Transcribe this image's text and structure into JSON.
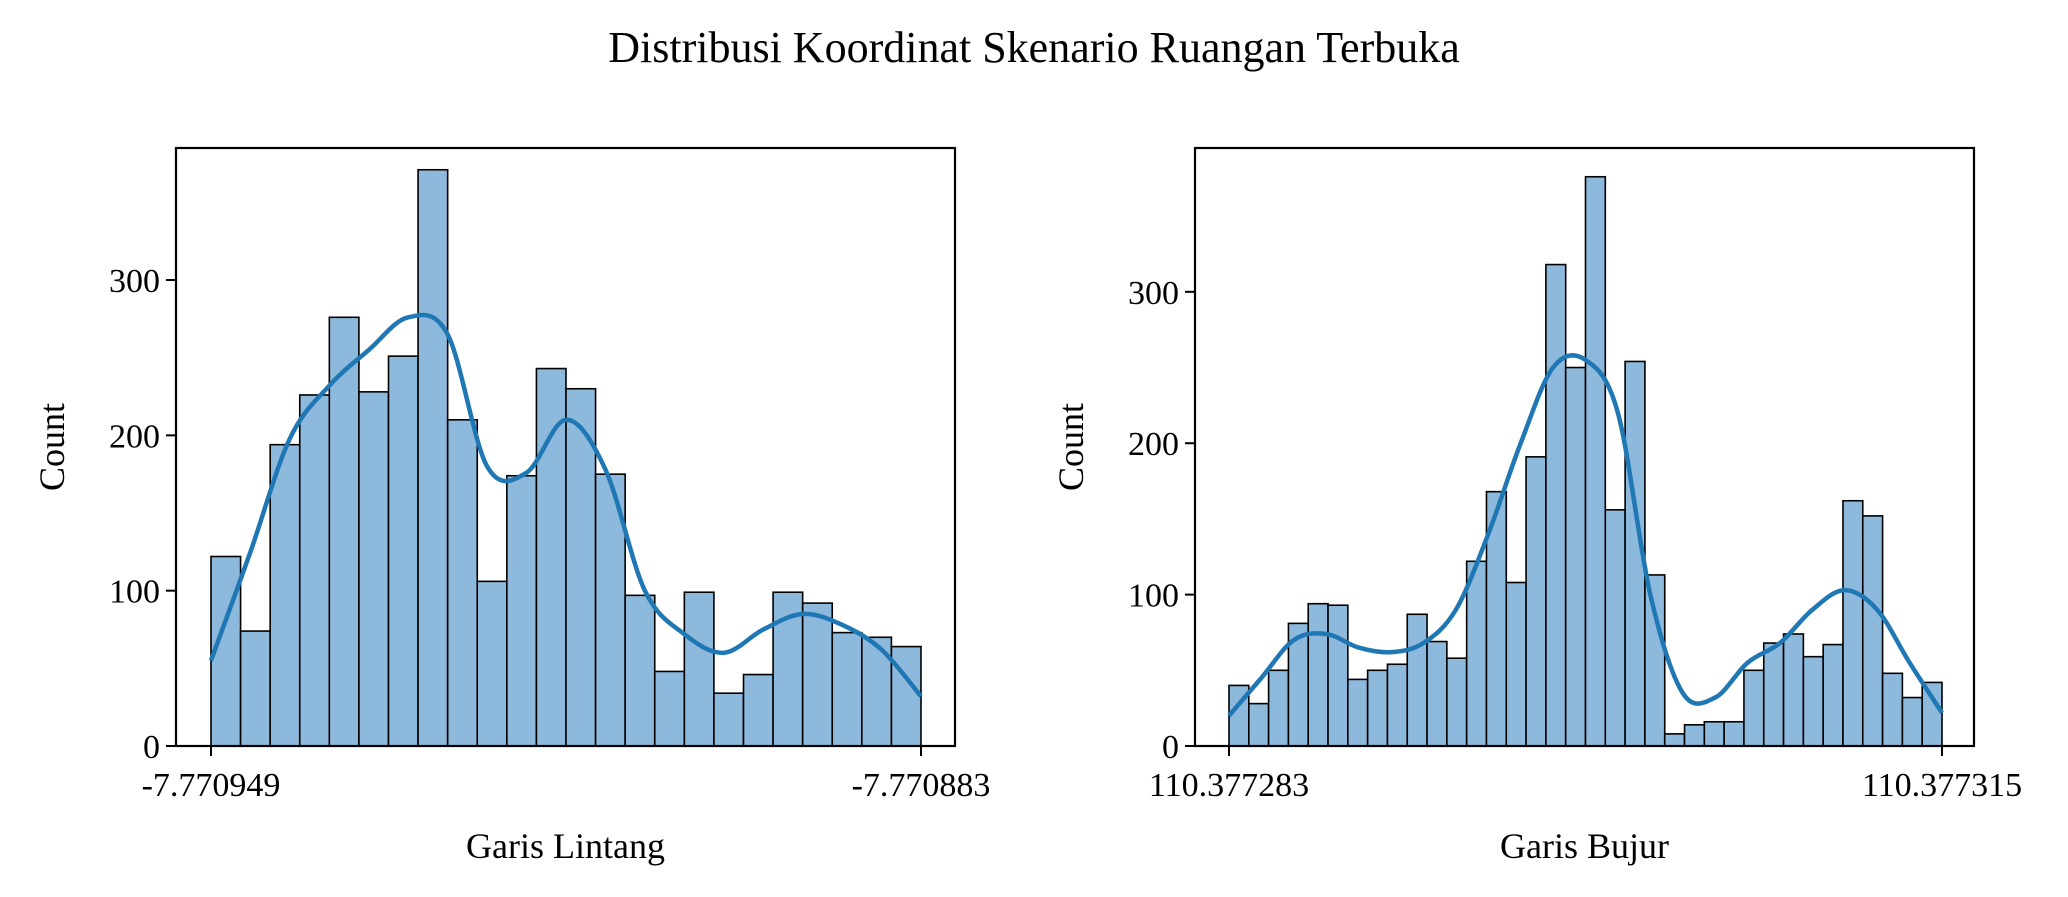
{
  "figure": {
    "title": "Distribusi Koordinat Skenario Ruangan Terbuka"
  },
  "chart_data": [
    {
      "type": "bar",
      "subtype": "histogram_with_kde",
      "title": "",
      "xlabel": "Garis Lintang",
      "ylabel": "Count",
      "xticks": [
        "-7.770949",
        "-7.770883"
      ],
      "yticks": [
        "0",
        "100",
        "200",
        "300"
      ],
      "ylim": [
        0,
        385
      ],
      "grid": false,
      "legend": "none",
      "bar_color": "#8db9dc",
      "line_color": "#1f77b4",
      "values": [
        122,
        74,
        194,
        226,
        276,
        228,
        251,
        371,
        210,
        106,
        174,
        243,
        230,
        175,
        97,
        48,
        99,
        34,
        46,
        99,
        92,
        73,
        70,
        64
      ],
      "kde": [
        55,
        125,
        198,
        232,
        255,
        276,
        265,
        180,
        176,
        210,
        178,
        100,
        72,
        60,
        75,
        85,
        78,
        62,
        32
      ]
    },
    {
      "type": "bar",
      "subtype": "histogram_with_kde",
      "title": "",
      "xlabel": "Garis Bujur",
      "ylabel": "Count",
      "xticks": [
        "110.377283",
        "110.377315"
      ],
      "yticks": [
        "0",
        "100",
        "200",
        "300"
      ],
      "ylim": [
        0,
        395
      ],
      "grid": false,
      "legend": "none",
      "bar_color": "#8db9dc",
      "line_color": "#1f77b4",
      "values": [
        40,
        28,
        50,
        81,
        94,
        93,
        44,
        50,
        54,
        87,
        69,
        58,
        122,
        168,
        108,
        191,
        318,
        250,
        376,
        156,
        254,
        113,
        8,
        14,
        16,
        16,
        50,
        68,
        74,
        59,
        67,
        162,
        152,
        48,
        32,
        42
      ],
      "kde": [
        20,
        45,
        70,
        74,
        65,
        62,
        68,
        90,
        140,
        200,
        250,
        255,
        220,
        100,
        35,
        32,
        55,
        68,
        90,
        103,
        90,
        55,
        22
      ]
    }
  ]
}
